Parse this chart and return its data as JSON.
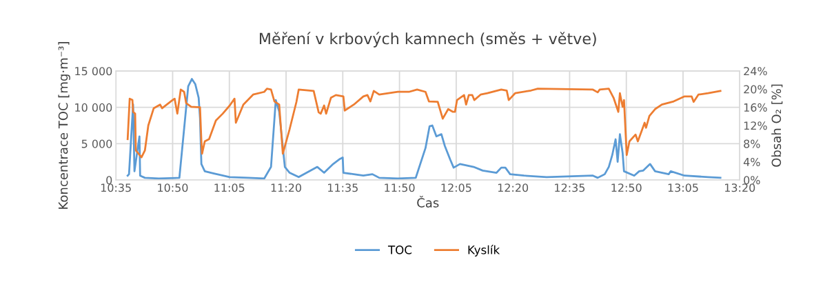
{
  "chart_data": {
    "type": "line",
    "title": "Měření v krbových kamnech (směs + větve)",
    "xlabel": "Čas",
    "ylabel": "Koncentrace TOC [mg·m⁻³]",
    "y2label": "Obsah O₂ [%]",
    "xlim": [
      10.5833,
      13.3333
    ],
    "xticks": [
      {
        "value": 10.5833,
        "label": "10:35"
      },
      {
        "value": 10.8333,
        "label": "10:50"
      },
      {
        "value": 11.0833,
        "label": "11:05"
      },
      {
        "value": 11.3333,
        "label": "11:20"
      },
      {
        "value": 11.5833,
        "label": "11:35"
      },
      {
        "value": 11.8333,
        "label": "11:50"
      },
      {
        "value": 12.0833,
        "label": "12:05"
      },
      {
        "value": 12.3333,
        "label": "12:20"
      },
      {
        "value": 12.5833,
        "label": "12:35"
      },
      {
        "value": 12.8333,
        "label": "12:50"
      },
      {
        "value": 13.0833,
        "label": "13:05"
      },
      {
        "value": 13.3333,
        "label": "13:20"
      }
    ],
    "ylim": [
      0,
      15000
    ],
    "yticks": [
      {
        "value": 0,
        "label": "0"
      },
      {
        "value": 5000,
        "label": "5 000"
      },
      {
        "value": 10000,
        "label": "10 000"
      },
      {
        "value": 15000,
        "label": "15 000"
      }
    ],
    "y2lim": [
      0,
      24
    ],
    "y2ticks": [
      {
        "value": 0,
        "label": "0%"
      },
      {
        "value": 4,
        "label": "4%"
      },
      {
        "value": 8,
        "label": "8%"
      },
      {
        "value": 12,
        "label": "12%"
      },
      {
        "value": 16,
        "label": "16%"
      },
      {
        "value": 20,
        "label": "20%"
      },
      {
        "value": 24,
        "label": "24%"
      }
    ],
    "grid": true,
    "legend": "bottom",
    "marker": "none",
    "line_style": "solid",
    "series": [
      {
        "name": "TOC",
        "color": "#5b9bd5",
        "x": [
          10.635,
          10.641,
          10.659,
          10.665,
          10.675,
          10.687,
          10.69,
          10.711,
          10.772,
          10.863,
          10.902,
          10.918,
          10.933,
          10.948,
          10.954,
          10.96,
          10.975,
          11.015,
          11.085,
          11.167,
          11.237,
          11.267,
          11.288,
          11.303,
          11.328,
          11.349,
          11.389,
          11.471,
          11.501,
          11.541,
          11.571,
          11.583,
          11.586,
          11.674,
          11.714,
          11.744,
          11.826,
          11.905,
          11.948,
          11.966,
          11.978,
          11.996,
          12.018,
          12.033,
          12.057,
          12.072,
          12.1,
          12.16,
          12.2,
          12.261,
          12.282,
          12.3,
          12.321,
          12.382,
          12.482,
          12.686,
          12.707,
          12.738,
          12.756,
          12.771,
          12.786,
          12.795,
          12.805,
          12.817,
          12.823,
          12.868,
          12.89,
          12.908,
          12.938,
          12.96,
          13.02,
          13.029,
          13.09,
          13.194,
          13.248
        ],
        "values": [
          600,
          800,
          10400,
          1200,
          3400,
          6000,
          600,
          300,
          200,
          300,
          12900,
          13900,
          13200,
          11300,
          8500,
          2200,
          1200,
          900,
          400,
          300,
          200,
          1800,
          11000,
          9400,
          1800,
          1000,
          400,
          1800,
          1000,
          2200,
          2900,
          3100,
          1000,
          600,
          800,
          300,
          200,
          300,
          4400,
          7400,
          7500,
          6000,
          6300,
          4700,
          2800,
          1700,
          2200,
          1800,
          1300,
          1000,
          1700,
          1700,
          800,
          600,
          400,
          600,
          300,
          800,
          1800,
          3400,
          5600,
          2500,
          6300,
          3700,
          1200,
          600,
          1200,
          1300,
          2200,
          1200,
          800,
          1200,
          600,
          400,
          300
        ]
      },
      {
        "name": "Kyslík",
        "color": "#ed7d31",
        "axis": "y2",
        "x": [
          10.635,
          10.644,
          10.656,
          10.659,
          10.668,
          10.671,
          10.696,
          10.711,
          10.726,
          10.75,
          10.778,
          10.787,
          10.833,
          10.842,
          10.854,
          10.869,
          10.884,
          10.893,
          10.915,
          10.954,
          10.96,
          10.963,
          10.975,
          10.994,
          11.024,
          11.054,
          11.085,
          11.106,
          11.112,
          11.145,
          11.188,
          11.237,
          11.249,
          11.267,
          11.282,
          11.303,
          11.319,
          11.349,
          11.379,
          11.389,
          11.455,
          11.477,
          11.486,
          11.501,
          11.51,
          11.531,
          11.553,
          11.586,
          11.592,
          11.632,
          11.674,
          11.692,
          11.705,
          11.72,
          11.744,
          11.826,
          11.875,
          11.911,
          11.948,
          11.963,
          12.002,
          12.024,
          12.048,
          12.069,
          12.078,
          12.087,
          12.118,
          12.127,
          12.139,
          12.154,
          12.163,
          12.191,
          12.221,
          12.282,
          12.306,
          12.315,
          12.343,
          12.413,
          12.443,
          12.686,
          12.707,
          12.716,
          12.756,
          12.777,
          12.798,
          12.805,
          12.817,
          12.823,
          12.835,
          12.847,
          12.874,
          12.884,
          12.914,
          12.92,
          12.935,
          12.96,
          12.99,
          13.042,
          13.09,
          13.121,
          13.13,
          13.151,
          13.194,
          13.248
        ],
        "values": [
          9.0,
          17.9,
          17.6,
          15.0,
          14.6,
          6.5,
          5.0,
          6.5,
          12.0,
          15.8,
          16.6,
          15.8,
          17.6,
          17.9,
          14.6,
          19.9,
          19.4,
          16.9,
          16.1,
          16.0,
          8.5,
          5.8,
          8.5,
          9.0,
          13.1,
          14.6,
          16.4,
          17.9,
          12.6,
          16.6,
          18.8,
          19.4,
          20.1,
          19.9,
          17.3,
          16.6,
          5.8,
          11.2,
          17.2,
          19.9,
          19.6,
          14.9,
          14.6,
          16.4,
          14.6,
          18.1,
          18.7,
          18.4,
          15.3,
          16.6,
          18.4,
          18.7,
          17.3,
          19.6,
          18.8,
          19.4,
          19.4,
          19.9,
          19.4,
          17.3,
          17.2,
          13.5,
          15.6,
          15.0,
          15.0,
          17.6,
          18.7,
          16.6,
          18.7,
          18.7,
          17.6,
          18.8,
          19.1,
          19.9,
          19.7,
          17.6,
          19.1,
          19.7,
          20.1,
          19.9,
          19.3,
          19.9,
          20.1,
          18.1,
          15.0,
          19.1,
          16.1,
          17.6,
          5.5,
          8.5,
          10.0,
          8.5,
          12.6,
          11.5,
          14.1,
          15.6,
          16.6,
          17.3,
          18.4,
          18.4,
          17.2,
          18.8,
          19.1,
          19.6
        ]
      }
    ]
  }
}
